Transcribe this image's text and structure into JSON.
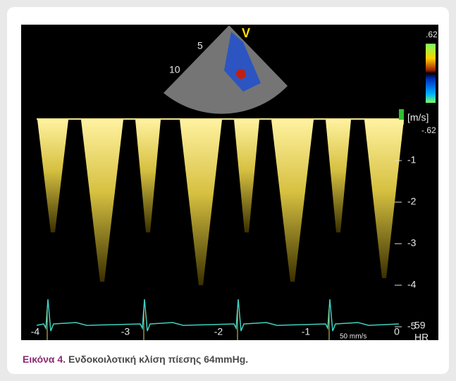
{
  "figure": {
    "sector_labels": [
      "V",
      "5",
      "10"
    ],
    "color_scale": {
      "top": ".62",
      "bottom": "-.62",
      "unit": "[m/s]"
    },
    "velocity_labels": [
      "-1",
      "-2",
      "-3",
      "-4",
      "-5"
    ],
    "time_labels": [
      "-4",
      "-3",
      "-2",
      "-1",
      "0"
    ],
    "heart_rate": {
      "value": "59",
      "label": "HR"
    },
    "sweep_speed": "50 mm/s"
  },
  "caption": {
    "label": "Εικόνα 4.",
    "text": "Ενδοκοιλοτική κλίση πίεσης 64mmHg."
  }
}
